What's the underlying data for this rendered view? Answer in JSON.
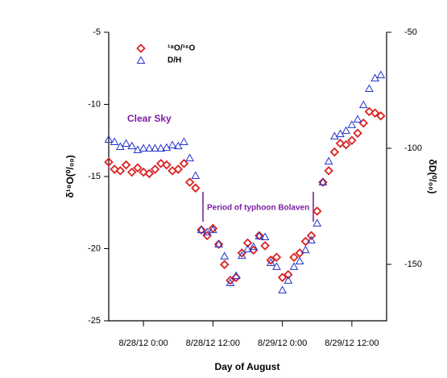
{
  "chart_data": {
    "type": "scatter",
    "x_label": "Day of August",
    "y_label": "δ¹⁸O(⁰/₀₀)",
    "y2_label": "δD(⁰/₀₀)",
    "annotations": [
      "Clear Sky",
      "Period of typhoon Bolaven"
    ],
    "x": [
      "8/27/12 18:00",
      "8/27/12 19:00",
      "8/27/12 20:00",
      "8/27/12 21:00",
      "8/27/12 22:00",
      "8/27/12 23:00",
      "8/28/12 0:00",
      "8/28/12 1:00",
      "8/28/12 2:00",
      "8/28/12 3:00",
      "8/28/12 4:00",
      "8/28/12 5:00",
      "8/28/12 6:00",
      "8/28/12 7:00",
      "8/28/12 8:00",
      "8/28/12 9:00",
      "8/28/12 10:00",
      "8/28/12 11:00",
      "8/28/12 12:00",
      "8/28/12 13:00",
      "8/28/12 14:00",
      "8/28/12 15:00",
      "8/28/12 16:00",
      "8/28/12 17:00",
      "8/28/12 18:00",
      "8/28/12 19:00",
      "8/28/12 20:00",
      "8/28/12 21:00",
      "8/28/12 22:00",
      "8/28/12 23:00",
      "8/29/12 0:00",
      "8/29/12 1:00",
      "8/29/12 2:00",
      "8/29/12 3:00",
      "8/29/12 4:00",
      "8/29/12 5:00",
      "8/29/12 6:00",
      "8/29/12 7:00",
      "8/29/12 8:00",
      "8/29/12 9:00",
      "8/29/12 10:00",
      "8/29/12 11:00",
      "8/29/12 12:00",
      "8/29/12 13:00",
      "8/29/12 14:00",
      "8/29/12 15:00",
      "8/29/12 16:00",
      "8/29/12 17:00"
    ],
    "series": [
      {
        "name": "¹⁸O/¹⁶O",
        "color": "#dd2222",
        "marker": "diamond",
        "values": [
          -14.0,
          -14.5,
          -14.6,
          -14.2,
          -14.7,
          -14.4,
          -14.7,
          -14.8,
          -14.5,
          -14.1,
          -14.2,
          -14.6,
          -14.5,
          -14.1,
          -15.4,
          -15.8,
          -18.7,
          -19.1,
          -18.6,
          -19.7,
          -21.1,
          -22.2,
          -22.0,
          -20.3,
          -19.6,
          -20.1,
          -19.1,
          -19.8,
          -20.8,
          -20.6,
          -22.0,
          -21.8,
          -20.6,
          -20.3,
          -19.5,
          -19.1,
          -17.4,
          -15.4,
          -14.6,
          -13.3,
          -12.7,
          -12.8,
          -12.5,
          -12.0,
          -11.3,
          -10.5,
          -10.6,
          -10.8
        ]
      },
      {
        "name": "D/H",
        "color": "#2233cc",
        "marker": "triangle",
        "axis": "y2",
        "values": [
          -96.2,
          -97.2,
          -99.3,
          -97.9,
          -99.0,
          -100.7,
          -100.0,
          -100.0,
          -100.0,
          -100.0,
          -99.7,
          -98.6,
          -99.0,
          -97.2,
          -104.2,
          -111.8,
          -135.1,
          -136.1,
          -135.1,
          -141.3,
          -146.5,
          -158.0,
          -154.9,
          -146.2,
          -143.4,
          -142.4,
          -137.8,
          -138.2,
          -149.3,
          -151.0,
          -161.1,
          -156.9,
          -151.0,
          -148.6,
          -143.8,
          -139.6,
          -132.3,
          -114.6,
          -105.6,
          -94.8,
          -93.8,
          -92.4,
          -89.9,
          -87.5,
          -81.3,
          -74.3,
          -69.8,
          -68.4
        ]
      }
    ],
    "xlim": [
      "8/27/12 18:00",
      "8/29/12 18:00"
    ],
    "xticks": [
      "8/28/12 0:00",
      "8/28/12 12:00",
      "8/29/12 0:00",
      "8/29/12 12:00"
    ],
    "ylim": [
      -25,
      -5
    ],
    "yticks": [
      -25,
      -20,
      -15,
      -10,
      -5
    ],
    "y2lim": [
      -174.3,
      -50
    ],
    "y2ticks": [
      -150,
      -100,
      -50
    ]
  }
}
